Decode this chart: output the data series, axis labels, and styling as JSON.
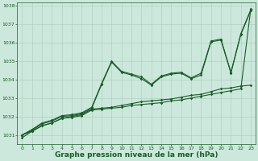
{
  "bg_color": "#cce8dc",
  "grid_color": "#aaccbb",
  "line_color": "#1a5c28",
  "xlabel": "Graphe pression niveau de la mer (hPa)",
  "xlabel_fontsize": 6.5,
  "xlim": [
    -0.5,
    23.5
  ],
  "ylim": [
    1030.5,
    1038.2
  ],
  "yticks": [
    1031,
    1032,
    1033,
    1034,
    1035,
    1036,
    1037,
    1038
  ],
  "xticks": [
    0,
    1,
    2,
    3,
    4,
    5,
    6,
    7,
    8,
    9,
    10,
    11,
    12,
    13,
    14,
    15,
    16,
    17,
    18,
    19,
    20,
    21,
    22,
    23
  ],
  "s1_y": [
    1031.0,
    1031.3,
    1031.65,
    1031.8,
    1032.05,
    1032.1,
    1032.2,
    1032.5,
    1033.8,
    1035.0,
    1034.45,
    1034.3,
    1034.15,
    1033.75,
    1034.2,
    1034.35,
    1034.4,
    1034.1,
    1034.35,
    1036.1,
    1036.2,
    1034.4,
    1036.5,
    1037.8
  ],
  "s2_y": [
    1031.0,
    1031.25,
    1031.6,
    1031.75,
    1032.0,
    1032.05,
    1032.15,
    1032.45,
    1033.75,
    1034.95,
    1034.4,
    1034.25,
    1034.05,
    1033.7,
    1034.15,
    1034.3,
    1034.35,
    1034.05,
    1034.25,
    1036.05,
    1036.15,
    1034.35,
    1036.45,
    1037.75
  ],
  "s3_y": [
    1031.0,
    1031.2,
    1031.5,
    1031.65,
    1031.9,
    1032.0,
    1032.1,
    1032.4,
    1032.45,
    1032.5,
    1032.6,
    1032.7,
    1032.8,
    1032.85,
    1032.9,
    1032.95,
    1033.05,
    1033.15,
    1033.2,
    1033.35,
    1033.5,
    1033.55,
    1033.65,
    1033.7
  ],
  "s4_y": [
    1030.85,
    1031.2,
    1031.5,
    1031.65,
    1031.9,
    1031.95,
    1032.05,
    1032.35,
    1032.4,
    1032.45,
    1032.5,
    1032.6,
    1032.65,
    1032.7,
    1032.75,
    1032.85,
    1032.9,
    1033.0,
    1033.1,
    1033.2,
    1033.3,
    1033.4,
    1033.5,
    1037.85
  ]
}
